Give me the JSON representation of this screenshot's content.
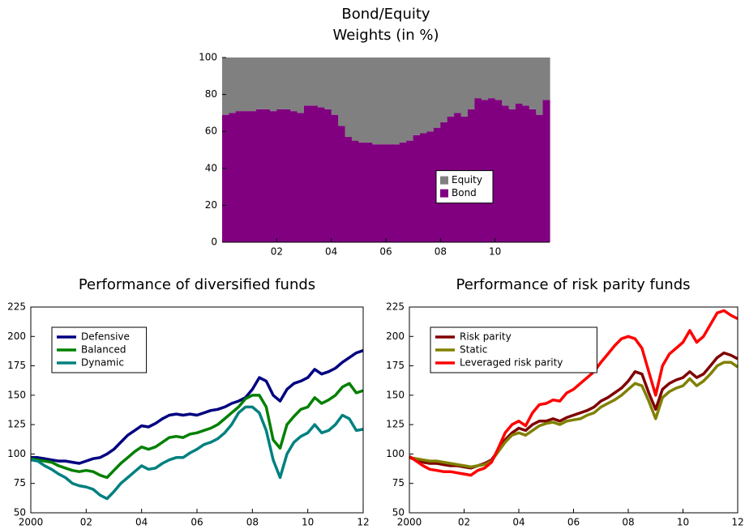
{
  "chart_data": [
    {
      "type": "area",
      "title": [
        "Bond/Equity",
        "Weights (in %)"
      ],
      "x": [
        2000,
        2000.25,
        2000.5,
        2000.75,
        2001,
        2001.25,
        2001.5,
        2001.75,
        2002,
        2002.25,
        2002.5,
        2002.75,
        2003,
        2003.25,
        2003.5,
        2003.75,
        2004,
        2004.25,
        2004.5,
        2004.75,
        2005,
        2005.25,
        2005.5,
        2005.75,
        2006,
        2006.25,
        2006.5,
        2006.75,
        2007,
        2007.25,
        2007.5,
        2007.75,
        2008,
        2008.25,
        2008.5,
        2008.75,
        2009,
        2009.25,
        2009.5,
        2009.75,
        2010,
        2010.25,
        2010.5,
        2010.75,
        2011,
        2011.25,
        2011.5,
        2011.75
      ],
      "series": [
        {
          "name": "Bond",
          "color": "#800080",
          "values": [
            69,
            70,
            71,
            71,
            71,
            72,
            72,
            71,
            72,
            72,
            71,
            70,
            74,
            74,
            73,
            72,
            69,
            63,
            57,
            55,
            54,
            54,
            53,
            53,
            53,
            53,
            54,
            55,
            58,
            59,
            60,
            62,
            65,
            68,
            70,
            68,
            72,
            78,
            77,
            78,
            77,
            74,
            72,
            75,
            74,
            72,
            69,
            77
          ]
        },
        {
          "name": "Equity",
          "color": "#808080",
          "values": [
            31,
            30,
            29,
            29,
            29,
            28,
            28,
            29,
            28,
            28,
            29,
            30,
            26,
            26,
            27,
            28,
            31,
            37,
            43,
            45,
            46,
            46,
            47,
            47,
            47,
            47,
            46,
            45,
            42,
            41,
            40,
            38,
            35,
            32,
            30,
            32,
            28,
            22,
            23,
            22,
            23,
            26,
            28,
            25,
            26,
            28,
            31,
            23
          ]
        }
      ],
      "legend_order": [
        "Equity",
        "Bond"
      ],
      "xlim": [
        2000,
        2012
      ],
      "ylim": [
        0,
        100
      ],
      "xticks": [
        {
          "value": 2002,
          "label": "02"
        },
        {
          "value": 2004,
          "label": "04"
        },
        {
          "value": 2006,
          "label": "06"
        },
        {
          "value": 2008,
          "label": "08"
        },
        {
          "value": 2010,
          "label": "10"
        }
      ],
      "yticks": [
        0,
        20,
        40,
        60,
        80,
        100
      ],
      "legend": "center right"
    },
    {
      "type": "line",
      "title": [
        "Performance of diversified funds"
      ],
      "x": [
        2000,
        2000.25,
        2000.5,
        2000.75,
        2001,
        2001.25,
        2001.5,
        2001.75,
        2002,
        2002.25,
        2002.5,
        2002.75,
        2003,
        2003.25,
        2003.5,
        2003.75,
        2004,
        2004.25,
        2004.5,
        2004.75,
        2005,
        2005.25,
        2005.5,
        2005.75,
        2006,
        2006.25,
        2006.5,
        2006.75,
        2007,
        2007.25,
        2007.5,
        2007.75,
        2008,
        2008.25,
        2008.5,
        2008.75,
        2009,
        2009.25,
        2009.5,
        2009.75,
        2010,
        2010.25,
        2010.5,
        2010.75,
        2011,
        2011.25,
        2011.5,
        2011.75,
        2012
      ],
      "series": [
        {
          "name": "Defensive",
          "color": "#000080",
          "values": [
            97,
            97,
            96,
            95,
            94,
            94,
            93,
            92,
            94,
            96,
            97,
            100,
            104,
            110,
            116,
            120,
            124,
            123,
            126,
            130,
            133,
            134,
            133,
            134,
            133,
            135,
            137,
            138,
            140,
            143,
            145,
            148,
            155,
            165,
            162,
            150,
            145,
            155,
            160,
            162,
            165,
            172,
            168,
            170,
            173,
            178,
            182,
            186,
            188
          ]
        },
        {
          "name": "Balanced",
          "color": "#008000",
          "values": [
            96,
            95,
            94,
            93,
            90,
            88,
            86,
            85,
            86,
            85,
            82,
            80,
            86,
            92,
            97,
            102,
            106,
            104,
            106,
            110,
            114,
            115,
            114,
            117,
            118,
            120,
            122,
            125,
            130,
            135,
            140,
            147,
            150,
            150,
            140,
            112,
            105,
            125,
            132,
            138,
            140,
            148,
            143,
            146,
            150,
            157,
            160,
            152,
            154
          ]
        },
        {
          "name": "Dynamic",
          "color": "#008080",
          "values": [
            95,
            94,
            90,
            87,
            83,
            80,
            75,
            73,
            72,
            70,
            65,
            62,
            68,
            75,
            80,
            85,
            90,
            87,
            88,
            92,
            95,
            97,
            97,
            101,
            104,
            108,
            110,
            113,
            118,
            125,
            135,
            140,
            140,
            135,
            120,
            95,
            80,
            100,
            110,
            115,
            118,
            125,
            118,
            120,
            125,
            133,
            130,
            120,
            121
          ]
        }
      ],
      "xlim": [
        2000,
        2012
      ],
      "ylim": [
        50,
        225
      ],
      "xticks": [
        2000,
        {
          "value": 2002,
          "label": "02"
        },
        {
          "value": 2004,
          "label": "04"
        },
        {
          "value": 2006,
          "label": "06"
        },
        {
          "value": 2008,
          "label": "08"
        },
        {
          "value": 2010,
          "label": "10"
        },
        {
          "value": 2012,
          "label": "12"
        }
      ],
      "yticks": [
        50,
        75,
        100,
        125,
        150,
        175,
        200,
        225
      ],
      "legend": "upper left"
    },
    {
      "type": "line",
      "title": [
        "Performance of risk parity funds"
      ],
      "x": [
        2000,
        2000.25,
        2000.5,
        2000.75,
        2001,
        2001.25,
        2001.5,
        2001.75,
        2002,
        2002.25,
        2002.5,
        2002.75,
        2003,
        2003.25,
        2003.5,
        2003.75,
        2004,
        2004.25,
        2004.5,
        2004.75,
        2005,
        2005.25,
        2005.5,
        2005.75,
        2006,
        2006.25,
        2006.5,
        2006.75,
        2007,
        2007.25,
        2007.5,
        2007.75,
        2008,
        2008.25,
        2008.5,
        2008.75,
        2009,
        2009.25,
        2009.5,
        2009.75,
        2010,
        2010.25,
        2010.5,
        2010.75,
        2011,
        2011.25,
        2011.5,
        2011.75,
        2012
      ],
      "series": [
        {
          "name": "Risk parity",
          "color": "#800000",
          "values": [
            97,
            95,
            93,
            92,
            92,
            91,
            90,
            90,
            89,
            88,
            90,
            92,
            95,
            103,
            112,
            118,
            122,
            120,
            125,
            128,
            128,
            130,
            128,
            131,
            133,
            135,
            137,
            140,
            145,
            148,
            152,
            156,
            162,
            170,
            168,
            152,
            138,
            155,
            160,
            163,
            165,
            170,
            165,
            168,
            175,
            182,
            186,
            184,
            181
          ]
        },
        {
          "name": "Static",
          "color": "#808000",
          "values": [
            97,
            96,
            95,
            94,
            94,
            93,
            92,
            91,
            90,
            89,
            90,
            91,
            94,
            102,
            110,
            116,
            118,
            116,
            120,
            124,
            126,
            127,
            125,
            128,
            129,
            130,
            133,
            135,
            140,
            143,
            146,
            150,
            155,
            160,
            158,
            145,
            130,
            148,
            153,
            156,
            158,
            164,
            158,
            162,
            168,
            175,
            178,
            178,
            174
          ]
        },
        {
          "name": "Leveraged risk parity",
          "color": "#ff0000",
          "values": [
            98,
            94,
            90,
            87,
            86,
            85,
            85,
            84,
            83,
            82,
            86,
            88,
            93,
            105,
            118,
            125,
            128,
            124,
            135,
            142,
            143,
            146,
            145,
            152,
            155,
            160,
            165,
            170,
            178,
            185,
            192,
            198,
            200,
            198,
            190,
            170,
            150,
            175,
            185,
            190,
            195,
            205,
            195,
            200,
            210,
            220,
            222,
            218,
            215
          ]
        }
      ],
      "xlim": [
        2000,
        2012
      ],
      "ylim": [
        50,
        225
      ],
      "xticks": [
        2000,
        {
          "value": 2002,
          "label": "02"
        },
        {
          "value": 2004,
          "label": "04"
        },
        {
          "value": 2006,
          "label": "06"
        },
        {
          "value": 2008,
          "label": "08"
        },
        {
          "value": 2010,
          "label": "10"
        },
        {
          "value": 2012,
          "label": "12"
        }
      ],
      "yticks": [
        50,
        75,
        100,
        125,
        150,
        175,
        200,
        225
      ],
      "legend": "upper left"
    }
  ]
}
